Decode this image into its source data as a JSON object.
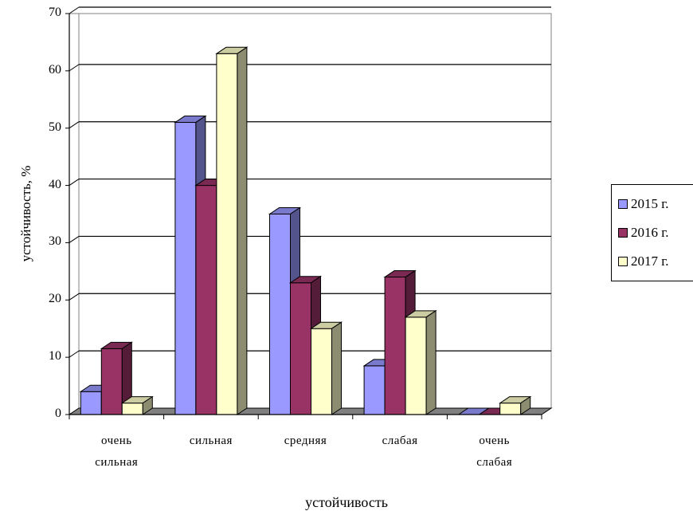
{
  "chart_data": {
    "type": "bar",
    "title": "",
    "xlabel": "устойчивость",
    "ylabel": "устойчивость, %",
    "ylim": [
      0,
      70
    ],
    "yticks": [
      "0",
      "10",
      "20",
      "30",
      "40",
      "50",
      "60",
      "70"
    ],
    "categories": [
      "очень\nсильная",
      "сильная",
      "средняя",
      "слабая",
      "очень\nслабая"
    ],
    "series": [
      {
        "name": "2015 г.",
        "color": "#9999ff",
        "values": [
          4,
          51,
          35,
          8.5,
          0
        ]
      },
      {
        "name": "2016 г.",
        "color": "#993366",
        "values": [
          11.5,
          40,
          23,
          24,
          0
        ]
      },
      {
        "name": "2017 г.",
        "color": "#ffffcc",
        "values": [
          2,
          63,
          15,
          17,
          2
        ]
      }
    ],
    "grid": true,
    "legend_position": "right",
    "style": "3d-bar"
  }
}
